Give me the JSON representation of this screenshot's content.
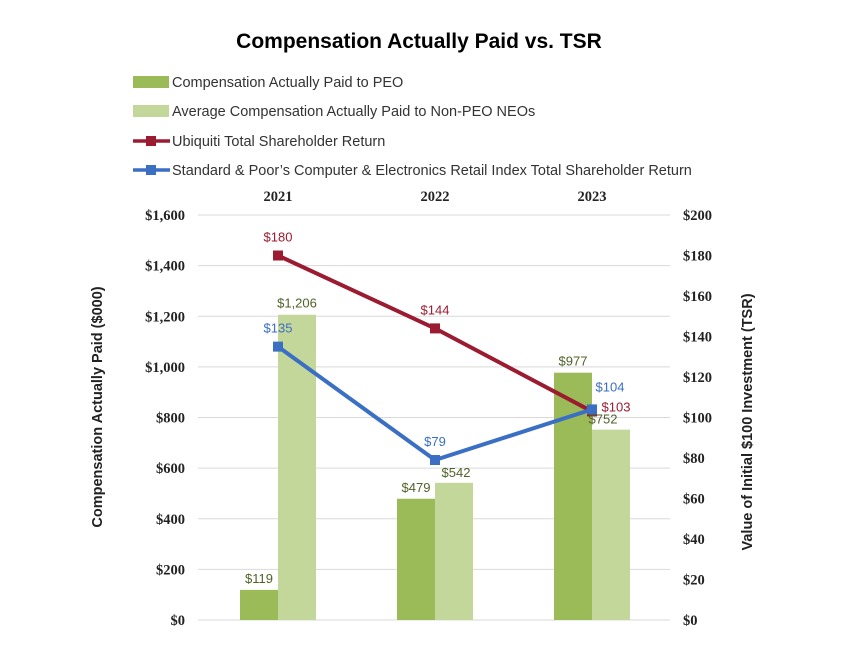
{
  "chart_data": {
    "type": "bar",
    "title": "Compensation Actually Paid vs. TSR",
    "categories": [
      "2021",
      "2022",
      "2023"
    ],
    "ylabel": "Compensation Actually Paid ($000)",
    "y2label": "Value of Initial $100 Investment (TSR)",
    "ylim": [
      0,
      1600
    ],
    "y2lim": [
      0,
      200
    ],
    "yticks": [
      "$0",
      "$200",
      "$400",
      "$600",
      "$800",
      "$1,000",
      "$1,200",
      "$1,400",
      "$1,600"
    ],
    "y2ticks": [
      "$0",
      "$20",
      "$40",
      "$60",
      "$80",
      "$100",
      "$120",
      "$140",
      "$160",
      "$180",
      "$200"
    ],
    "grid": true,
    "legend_position": "top",
    "bar_series": [
      {
        "name": "Compensation Actually Paid to PEO",
        "values": [
          119,
          479,
          977
        ],
        "labels": [
          "$119",
          "$479",
          "$977"
        ],
        "color": "#9bbb59",
        "label_color": "#4f6228"
      },
      {
        "name": "Average Compensation Actually Paid to Non-PEO NEOs",
        "values": [
          1206,
          542,
          752
        ],
        "labels": [
          "$1,206",
          "$542",
          "$752"
        ],
        "color": "#c4d79b",
        "label_color": "#4f6228"
      }
    ],
    "line_series": [
      {
        "name": "Ubiquiti Total Shareholder Return",
        "values": [
          180,
          144,
          103
        ],
        "labels": [
          "$180",
          "$144",
          "$103"
        ],
        "color": "#9b1b30"
      },
      {
        "name": "Standard & Poor’s Computer & Electronics Retail Index Total Shareholder Return",
        "values": [
          135,
          79,
          104
        ],
        "labels": [
          "$135",
          "$79",
          "$104"
        ],
        "color": "#3a6fc4"
      }
    ]
  }
}
